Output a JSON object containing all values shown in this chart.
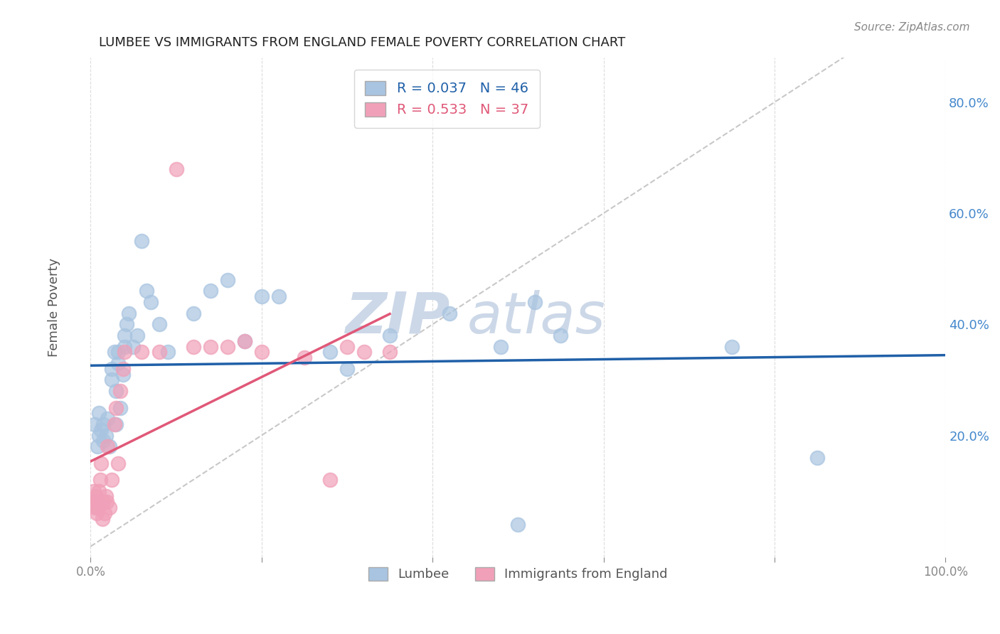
{
  "title": "LUMBEE VS IMMIGRANTS FROM ENGLAND FEMALE POVERTY CORRELATION CHART",
  "source": "Source: ZipAtlas.com",
  "ylabel": "Female Poverty",
  "xlim": [
    0.0,
    1.0
  ],
  "ylim": [
    -0.02,
    0.88
  ],
  "yticks": [
    0.0,
    0.2,
    0.4,
    0.6,
    0.8
  ],
  "ytick_labels": [
    "",
    "20.0%",
    "40.0%",
    "60.0%",
    "80.0%"
  ],
  "xticks": [
    0.0,
    0.2,
    0.4,
    0.6,
    0.8,
    1.0
  ],
  "xtick_labels": [
    "0.0%",
    "",
    "",
    "",
    "",
    "100.0%"
  ],
  "lumbee_color": "#a8c4e0",
  "england_color": "#f0a0b8",
  "lumbee_line_color": "#2060a8",
  "england_line_color": "#e05878",
  "diagonal_color": "#c8c8c8",
  "watermark_color": "#ccd8e8",
  "legend_r_lumbee": "R = 0.037",
  "legend_n_lumbee": "N = 46",
  "legend_r_england": "R = 0.533",
  "legend_n_england": "N = 37",
  "lumbee_x": [
    0.005,
    0.008,
    0.01,
    0.01,
    0.012,
    0.015,
    0.015,
    0.018,
    0.02,
    0.022,
    0.025,
    0.025,
    0.028,
    0.03,
    0.03,
    0.032,
    0.032,
    0.035,
    0.038,
    0.04,
    0.04,
    0.042,
    0.045,
    0.05,
    0.055,
    0.06,
    0.065,
    0.07,
    0.08,
    0.09,
    0.12,
    0.14,
    0.16,
    0.18,
    0.2,
    0.22,
    0.28,
    0.3,
    0.35,
    0.42,
    0.48,
    0.52,
    0.55,
    0.75,
    0.85,
    0.5
  ],
  "lumbee_y": [
    0.22,
    0.18,
    0.2,
    0.24,
    0.21,
    0.19,
    0.22,
    0.2,
    0.23,
    0.18,
    0.3,
    0.32,
    0.35,
    0.22,
    0.28,
    0.33,
    0.35,
    0.25,
    0.31,
    0.36,
    0.38,
    0.4,
    0.42,
    0.36,
    0.38,
    0.55,
    0.46,
    0.44,
    0.4,
    0.35,
    0.42,
    0.46,
    0.48,
    0.37,
    0.45,
    0.45,
    0.35,
    0.32,
    0.38,
    0.42,
    0.36,
    0.44,
    0.38,
    0.36,
    0.16,
    0.04
  ],
  "england_x": [
    0.002,
    0.004,
    0.005,
    0.006,
    0.007,
    0.008,
    0.009,
    0.01,
    0.011,
    0.012,
    0.014,
    0.015,
    0.016,
    0.018,
    0.019,
    0.02,
    0.022,
    0.025,
    0.028,
    0.03,
    0.032,
    0.035,
    0.038,
    0.04,
    0.06,
    0.08,
    0.1,
    0.12,
    0.14,
    0.16,
    0.18,
    0.2,
    0.25,
    0.28,
    0.3,
    0.32,
    0.35
  ],
  "england_y": [
    0.08,
    0.1,
    0.07,
    0.09,
    0.06,
    0.08,
    0.07,
    0.1,
    0.12,
    0.15,
    0.05,
    0.08,
    0.06,
    0.09,
    0.08,
    0.18,
    0.07,
    0.12,
    0.22,
    0.25,
    0.15,
    0.28,
    0.32,
    0.35,
    0.35,
    0.35,
    0.68,
    0.36,
    0.36,
    0.36,
    0.37,
    0.35,
    0.34,
    0.12,
    0.36,
    0.35,
    0.35
  ],
  "background_color": "#ffffff",
  "grid_color": "#cccccc"
}
